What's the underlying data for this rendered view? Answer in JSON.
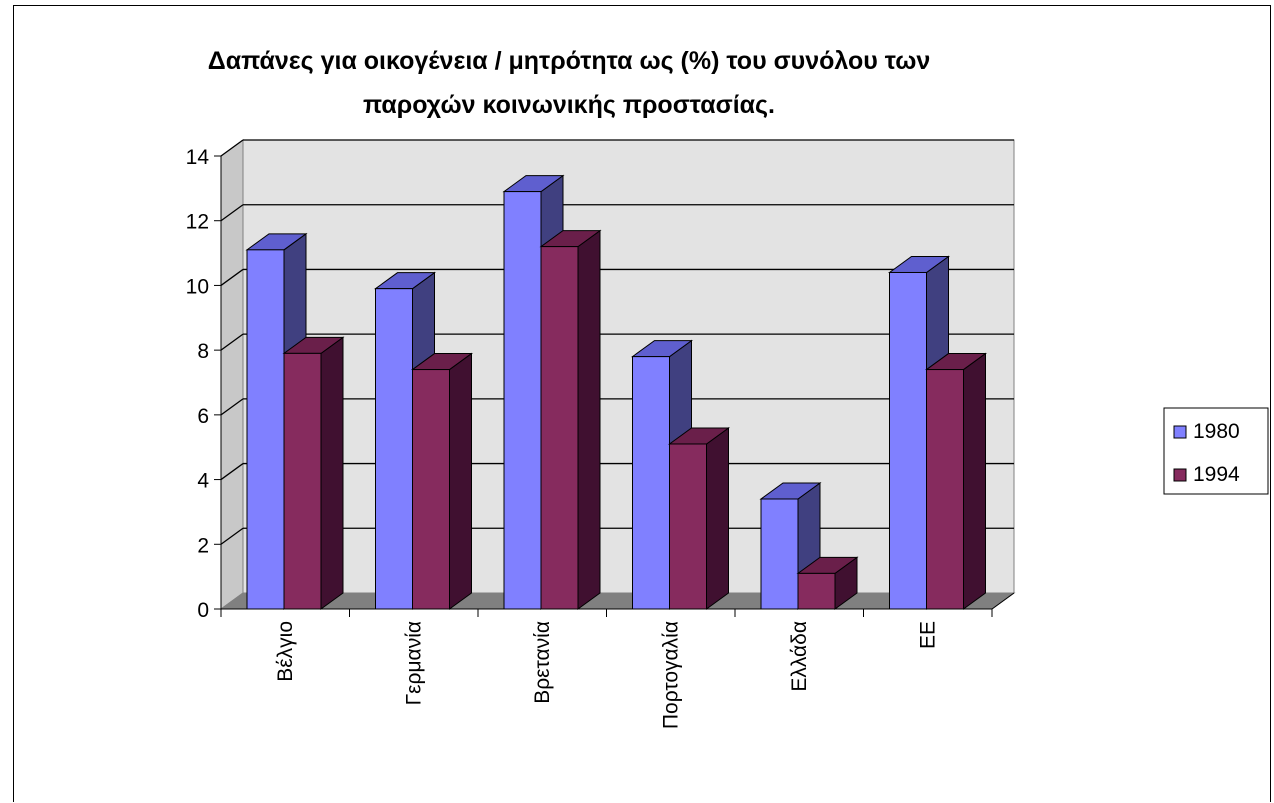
{
  "chart_data": {
    "type": "bar",
    "title": "Δαπάνες για οικογένεια / μητρότητα ως (%) του συνόλου των παροχών κοινωνικής προστασίας.",
    "title_lines": [
      "Δαπάνες για οικογένεια / μητρότητα ως (%) του συνόλου των",
      "παροχών κοινωνικής προστασίας."
    ],
    "categories": [
      "Βέλγιο",
      "Γερμανία",
      "Βρετανία",
      "Πορτογαλία",
      "Ελλάδα",
      "ΕΕ"
    ],
    "series": [
      {
        "name": "1980",
        "values": [
          11.1,
          9.9,
          12.9,
          7.8,
          3.4,
          10.4
        ],
        "color": "#8080ff",
        "side_color": "#404080",
        "top_color": "#5f5fcf"
      },
      {
        "name": "1994",
        "values": [
          7.9,
          7.4,
          11.2,
          5.1,
          1.1,
          7.4
        ],
        "color": "#862b5e",
        "side_color": "#401030",
        "top_color": "#6a1f4a"
      }
    ],
    "y_ticks": [
      "0",
      "2",
      "4",
      "6",
      "8",
      "10",
      "12",
      "14"
    ],
    "xlabel": "",
    "ylabel": "",
    "ylim": [
      0,
      14
    ],
    "grid": true,
    "legend_position": "right",
    "style": "3d-clustered-column"
  }
}
